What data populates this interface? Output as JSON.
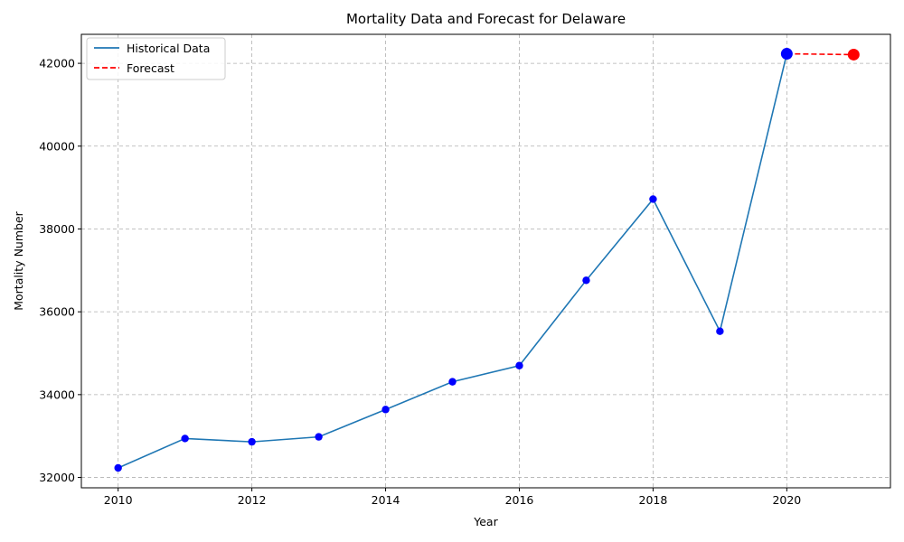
{
  "chart_data": {
    "type": "line",
    "title": "Mortality Data and Forecast for Delaware",
    "xlabel": "Year",
    "ylabel": "Mortality Number",
    "xlim": [
      2009.45,
      2021.55
    ],
    "ylim": [
      31750,
      42700
    ],
    "x_ticks": [
      2010,
      2012,
      2014,
      2016,
      2018,
      2020
    ],
    "y_ticks": [
      32000,
      34000,
      36000,
      38000,
      40000,
      42000
    ],
    "grid": true,
    "legend_position": "top-left",
    "series": [
      {
        "name": "Historical Data",
        "style": "solid",
        "color": "#1f77b4",
        "marker_color": "#0000ff",
        "x": [
          2010,
          2011,
          2012,
          2013,
          2014,
          2015,
          2016,
          2017,
          2018,
          2019,
          2020
        ],
        "values": [
          32230,
          32940,
          32860,
          32980,
          33640,
          34310,
          34700,
          36760,
          38720,
          35530,
          42230
        ]
      },
      {
        "name": "Forecast",
        "style": "dashed",
        "color": "#ff0000",
        "marker_color": "#ff0000",
        "x": [
          2020,
          2021
        ],
        "values": [
          42230,
          42210
        ]
      }
    ]
  }
}
